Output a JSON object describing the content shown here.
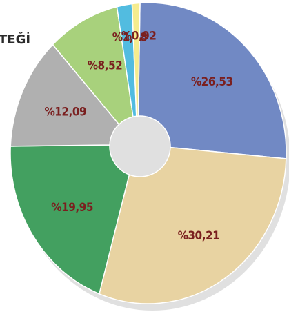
{
  "chart_data": {
    "type": "donut",
    "title": "TEĞİ",
    "categories": [
      null,
      null,
      null,
      null,
      null,
      null,
      null
    ],
    "values": [
      26.53,
      30.21,
      19.95,
      12.09,
      8.52,
      1.78,
      0.92
    ],
    "value_labels": [
      "%26,53",
      "%30,21",
      "%19,95",
      "%12,09",
      "%8,52",
      "%1,78",
      "%0,92"
    ],
    "colors": [
      "#7189c4",
      "#e8d3a2",
      "#43a060",
      "#b0b0b0",
      "#a8d17c",
      "#52bce0",
      "#f5ec8e"
    ]
  }
}
